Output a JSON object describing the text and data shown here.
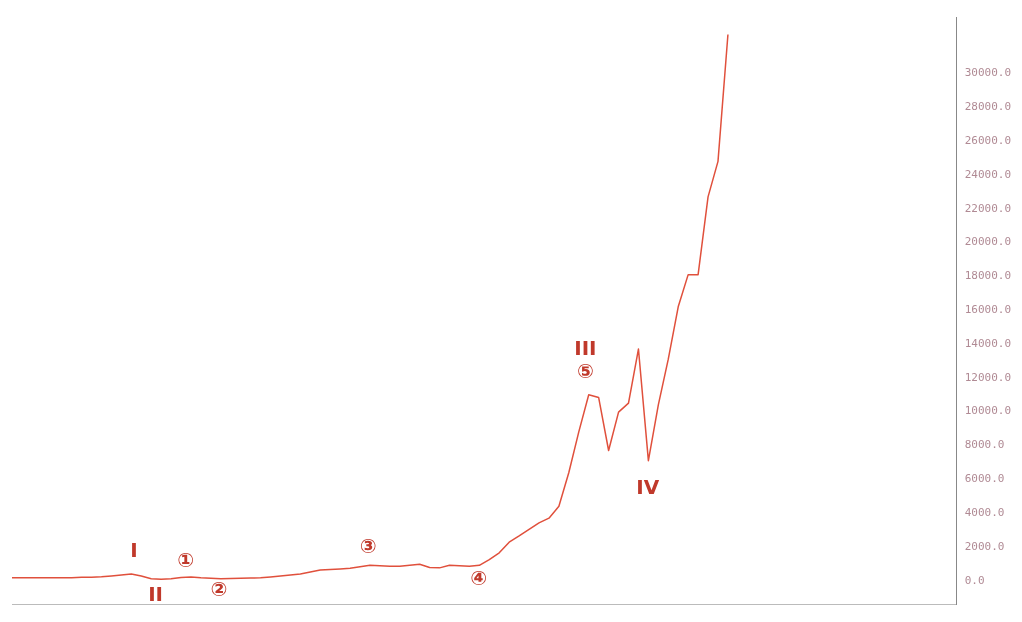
{
  "chart_data": {
    "type": "line",
    "categories": [
      null,
      null,
      null,
      null,
      null,
      null,
      null,
      null,
      null,
      null,
      null,
      null,
      null,
      null,
      null,
      null,
      null,
      null,
      null,
      null,
      null,
      null,
      null,
      null,
      null,
      null,
      null,
      null,
      null,
      null,
      null,
      null,
      null,
      null,
      null,
      null,
      null,
      null,
      null,
      null,
      null,
      null,
      null,
      null,
      null,
      null,
      null,
      null,
      null,
      null,
      null,
      null,
      null,
      null,
      null,
      null,
      null,
      null,
      null,
      null,
      null,
      null,
      null,
      null,
      null,
      null,
      null,
      null,
      null,
      null,
      null,
      null,
      null,
      null,
      null,
      null,
      null,
      null,
      null,
      null,
      null,
      null,
      null,
      null,
      null,
      null,
      null,
      null,
      null,
      null,
      null,
      null,
      null,
      null,
      null,
      null
    ],
    "series": [
      {
        "color": "#e0503c",
        "values": [
          170,
          170,
          170,
          170,
          170,
          170,
          180,
          200,
          210,
          230,
          280,
          340,
          400,
          280,
          120,
          80,
          110,
          190,
          220,
          170,
          140,
          110,
          130,
          150,
          160,
          170,
          220,
          280,
          340,
          400,
          520,
          630,
          670,
          700,
          740,
          820,
          910,
          880,
          860,
          850,
          910,
          970,
          780,
          760,
          910,
          880,
          850,
          910,
          1250,
          1650,
          2280,
          2650,
          3040,
          3420,
          3700,
          4400,
          6400,
          8800,
          11000,
          10830,
          7700,
          9970,
          10500,
          13700,
          7100,
          10400,
          13100,
          16200,
          18100,
          18100,
          22700,
          24800,
          32300,
          null,
          null,
          null,
          null,
          null,
          null,
          null,
          null,
          null,
          null,
          null,
          null,
          null,
          null,
          null,
          null,
          null,
          null,
          null,
          null,
          null,
          null,
          null
        ]
      }
    ],
    "ylim": [
      -1400,
      33300
    ],
    "yticks": [
      {
        "value": 0,
        "label": "0.0"
      },
      {
        "value": 2000,
        "label": "2000.0"
      },
      {
        "value": 4000,
        "label": "4000.0"
      },
      {
        "value": 6000,
        "label": "6000.0"
      },
      {
        "value": 8000,
        "label": "8000.0"
      },
      {
        "value": 10000,
        "label": "10000.0"
      },
      {
        "value": 12000,
        "label": "12000.0"
      },
      {
        "value": 14000,
        "label": "14000.0"
      },
      {
        "value": 16000,
        "label": "16000.0"
      },
      {
        "value": 18000,
        "label": "18000.0"
      },
      {
        "value": 20000,
        "label": "20000.0"
      },
      {
        "value": 22000,
        "label": "22000.0"
      },
      {
        "value": 24000,
        "label": "24000.0"
      },
      {
        "value": 26000,
        "label": "26000.0"
      },
      {
        "value": 28000,
        "label": "28000.0"
      },
      {
        "value": 30000,
        "label": "30000.0"
      }
    ],
    "tick_labels": "y",
    "grid": false,
    "legend": false,
    "marker": "none",
    "line_style": "solid",
    "annotations": [
      "I",
      "II",
      "①",
      "②",
      "③",
      "④",
      "III",
      "⑤",
      "IV"
    ]
  }
}
